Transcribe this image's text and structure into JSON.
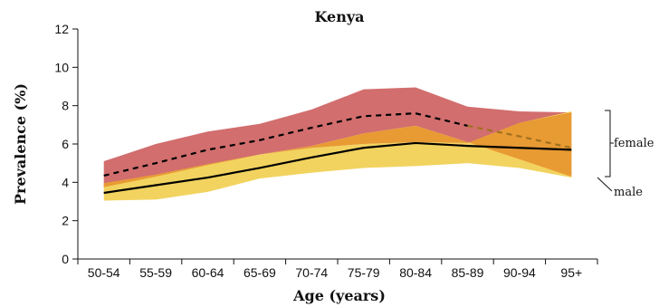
{
  "chart_data": {
    "type": "line",
    "title": "Kenya",
    "xlabel": "Age (years)",
    "ylabel": "Prevalence (%)",
    "categories": [
      "50-54",
      "55-59",
      "60-64",
      "65-69",
      "70-74",
      "75-79",
      "80-84",
      "85-89",
      "90-94",
      "95+"
    ],
    "ylim": [
      0,
      12
    ],
    "yticks": [
      0,
      2,
      4,
      6,
      8,
      10,
      12
    ],
    "grid": false,
    "series": [
      {
        "name": "female",
        "style": "dashed",
        "color": "#000000",
        "values": [
          4.35,
          5.0,
          5.7,
          6.2,
          6.85,
          7.45,
          7.6,
          6.95,
          6.4,
          5.8
        ],
        "lower": [
          3.75,
          4.3,
          4.9,
          5.45,
          5.9,
          6.55,
          6.95,
          6.1,
          5.2,
          4.3
        ],
        "upper": [
          5.1,
          6.0,
          6.65,
          7.05,
          7.8,
          8.85,
          8.95,
          7.95,
          7.7,
          7.65
        ],
        "band_color": "#d26e6e"
      },
      {
        "name": "male",
        "style": "solid",
        "color": "#000000",
        "values": [
          3.45,
          3.85,
          4.25,
          4.75,
          5.3,
          5.8,
          6.05,
          5.9,
          5.8,
          5.7
        ],
        "lower": [
          3.05,
          3.1,
          3.5,
          4.2,
          4.5,
          4.75,
          4.85,
          5.0,
          4.75,
          4.25
        ],
        "upper": [
          3.95,
          4.4,
          4.95,
          5.45,
          5.8,
          6.0,
          6.1,
          6.05,
          7.1,
          7.7
        ],
        "band_color": "#f2d35f"
      }
    ],
    "overlap_color": "#e89a33",
    "female_line_segment_color_tail": "#a07020",
    "annotations": [
      "female",
      "male"
    ]
  }
}
